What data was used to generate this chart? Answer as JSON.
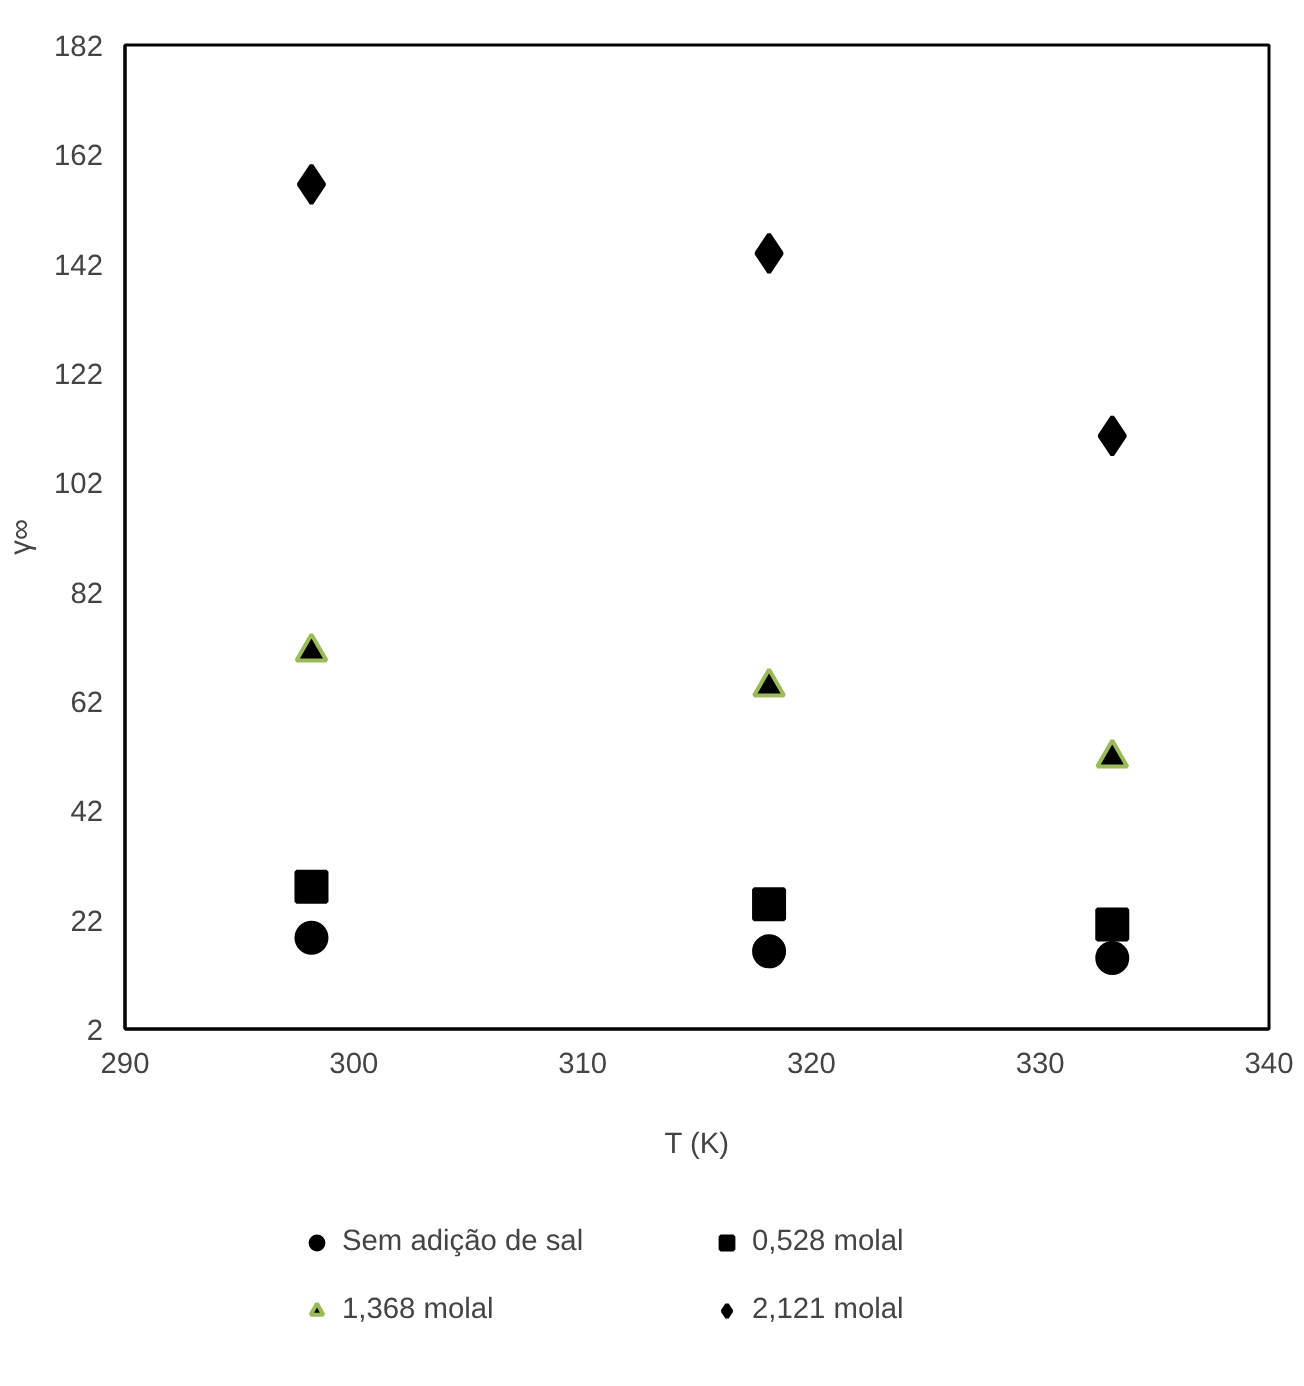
{
  "chart_data": {
    "type": "scatter",
    "xlabel": "T (K)",
    "ylabel": "γ∞",
    "x": [
      298.15,
      318.15,
      333.15
    ],
    "series": [
      {
        "name": "Sem adição de sal",
        "color": "#000000",
        "marker": "circle",
        "values": [
          18.7,
          16.2,
          15.0
        ]
      },
      {
        "name": "0,528 molal",
        "color": "#000000",
        "marker": "square",
        "values": [
          28.0,
          24.8,
          21.1
        ]
      },
      {
        "name": "1,368 molal",
        "color": "#9bbb59",
        "marker": "triangle",
        "values": [
          71.0,
          64.6,
          51.6
        ]
      },
      {
        "name": "2,121 molal",
        "color": "#000000",
        "marker": "diamond",
        "values": [
          156.5,
          143.9,
          110.5
        ]
      }
    ],
    "xlim": [
      290,
      340
    ],
    "xticks": [
      290,
      300,
      310,
      320,
      330,
      340
    ],
    "ylim": [
      2,
      182
    ],
    "yticks": [
      2,
      22,
      42,
      62,
      82,
      102,
      122,
      142,
      162,
      182
    ],
    "grid": false,
    "legend": "bottom"
  }
}
